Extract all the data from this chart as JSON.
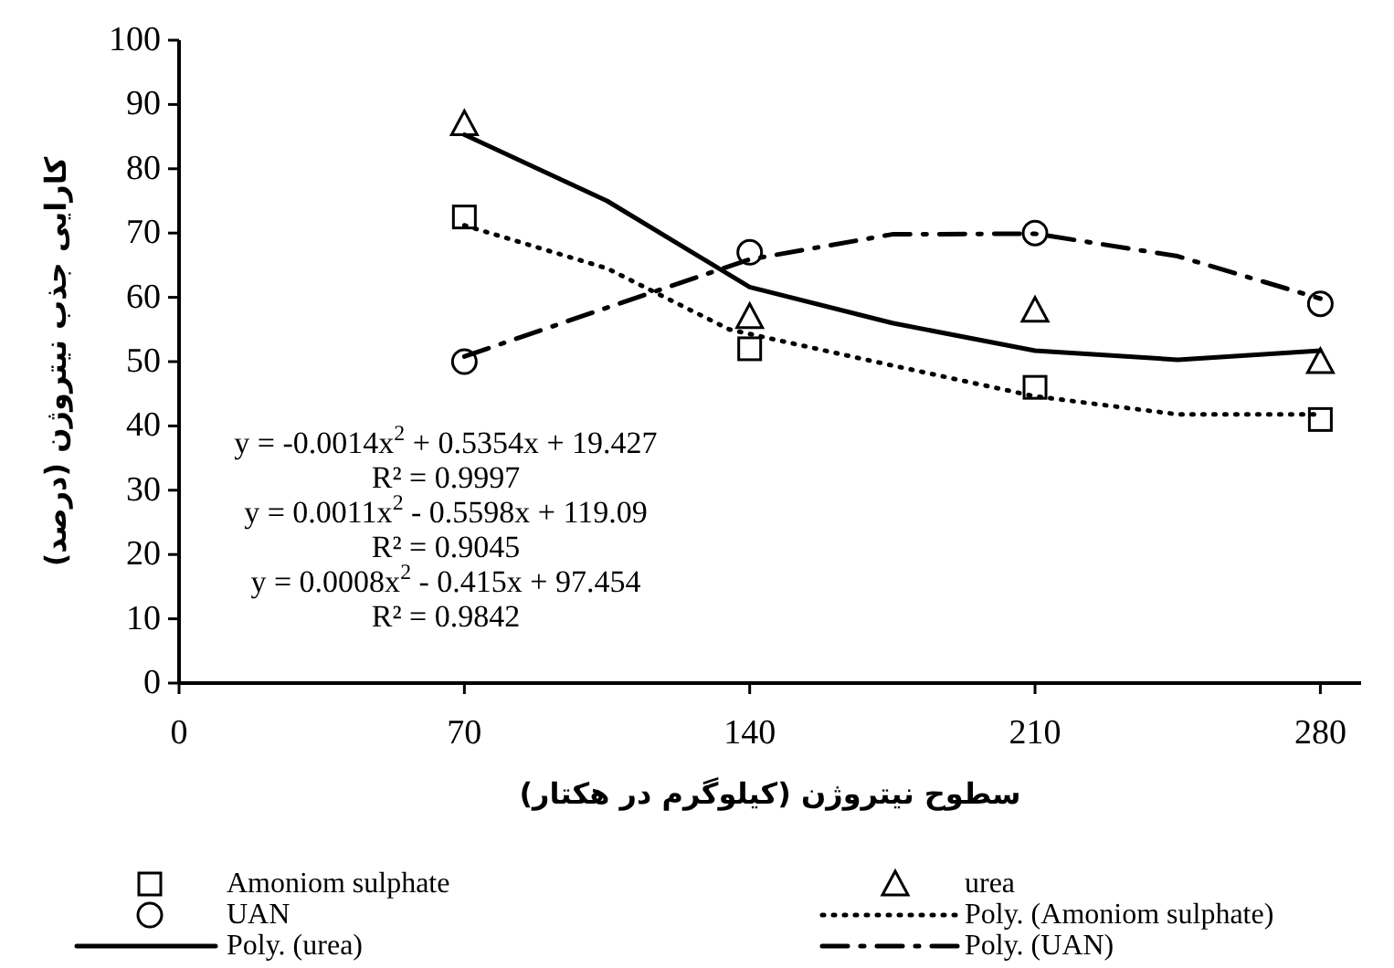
{
  "chart_data": {
    "type": "scatter",
    "xlabel": "سطوح نیتروژن (کیلوگرم در هکتار)",
    "ylabel": "کارایی جذب نیتروژن (درصد)",
    "xlim": [
      0,
      290
    ],
    "ylim": [
      0,
      100
    ],
    "xticks": [
      0,
      70,
      140,
      210,
      280
    ],
    "yticks": [
      0,
      10,
      20,
      30,
      40,
      50,
      60,
      70,
      80,
      90,
      100
    ],
    "grid": false,
    "legend": "bottom",
    "x": [
      70,
      140,
      210,
      280
    ],
    "series": [
      {
        "name": "Amoniom sulphate",
        "color": "#000000",
        "type": "scatter",
        "marker": "square",
        "values": [
          72.5,
          52,
          46,
          41
        ]
      },
      {
        "name": "urea",
        "color": "#000000",
        "type": "scatter",
        "marker": "triangle",
        "values": [
          87,
          57,
          58,
          50
        ]
      },
      {
        "name": "UAN",
        "color": "#000000",
        "type": "scatter",
        "marker": "circle",
        "values": [
          50,
          67,
          70,
          59
        ]
      },
      {
        "name": "Poly. (Amoniom sulphate)",
        "color": "#000000",
        "type": "line",
        "line_style": "dotted",
        "marker": "none",
        "x": [
          70,
          105,
          135,
          175,
          210,
          245,
          280
        ],
        "values": [
          71.2,
          64.5,
          55,
          49.4,
          44.6,
          41.8,
          41.8
        ]
      },
      {
        "name": "Poly. (urea)",
        "color": "#000000",
        "type": "line",
        "line_style": "solid",
        "marker": "none",
        "x": [
          70,
          105,
          140,
          175,
          210,
          245,
          280
        ],
        "values": [
          85.3,
          75,
          61.6,
          56,
          51.7,
          50.3,
          51.7
        ]
      },
      {
        "name": "Poly. (UAN)",
        "color": "#000000",
        "type": "line",
        "line_style": "dashdot",
        "marker": "none",
        "x": [
          70,
          105,
          140,
          175,
          210,
          245,
          280
        ],
        "values": [
          50.8,
          58.4,
          65.9,
          69.8,
          69.9,
          66.4,
          59.8
        ]
      }
    ],
    "annotations": [
      "y = -0.0014x$^{2}$ + 0.5354x + 19.427",
      "R² = 0.9997",
      "y = 0.0011x$^{2}$ - 0.5598x + 119.09",
      "R² = 0.9045",
      "y = 0.0008x$^{2}$ - 0.415x + 97.454",
      "R² = 0.9842"
    ]
  }
}
